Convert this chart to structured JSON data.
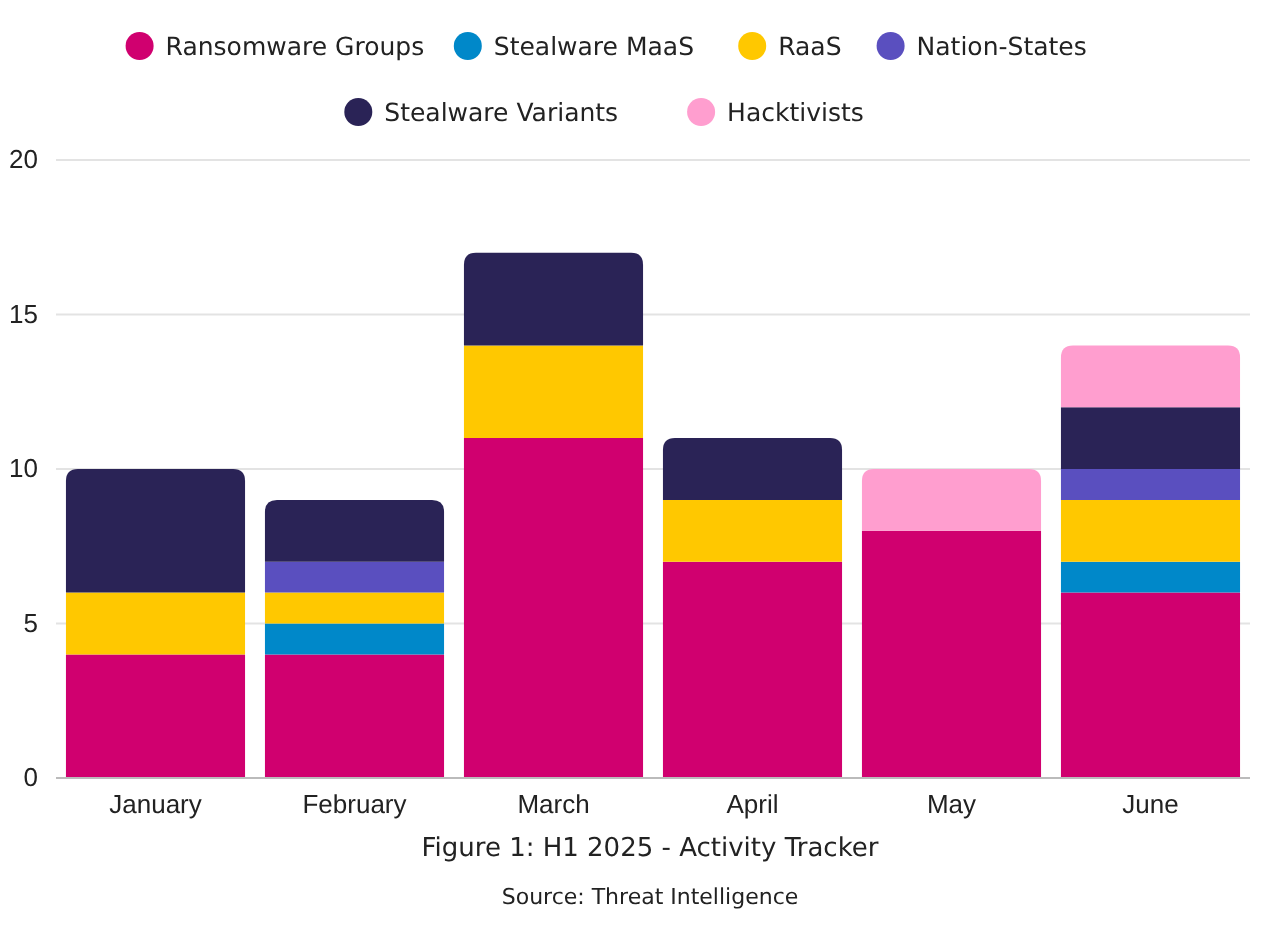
{
  "chart_data": {
    "type": "bar",
    "stacked": true,
    "title": "Figure 1: H1 2025 - Activity Tracker",
    "annotations": [
      "Source: Threat Intelligence"
    ],
    "categories": [
      "January",
      "February",
      "March",
      "April",
      "May",
      "June"
    ],
    "series": [
      {
        "name": "Ransomware Groups",
        "color": "#d0006f",
        "values": [
          4,
          4,
          11,
          7,
          8,
          6
        ]
      },
      {
        "name": "Stealware MaaS",
        "color": "#0088c9",
        "values": [
          null,
          1,
          null,
          null,
          null,
          1
        ]
      },
      {
        "name": "RaaS",
        "color": "#ffc800",
        "values": [
          2,
          1,
          3,
          2,
          null,
          2
        ]
      },
      {
        "name": "Nation-States",
        "color": "#5a4fbf",
        "values": [
          null,
          1,
          null,
          null,
          null,
          1
        ]
      },
      {
        "name": "Stealware Variants",
        "color": "#2a2356",
        "values": [
          4,
          2,
          3,
          2,
          null,
          2
        ]
      },
      {
        "name": "Hacktivists",
        "color": "#ff9ecf",
        "values": [
          null,
          null,
          null,
          null,
          2,
          2
        ]
      }
    ],
    "ylim": [
      0,
      20
    ],
    "yticks": [
      0,
      5,
      10,
      15,
      20
    ],
    "grid": "y",
    "legend": "top"
  }
}
